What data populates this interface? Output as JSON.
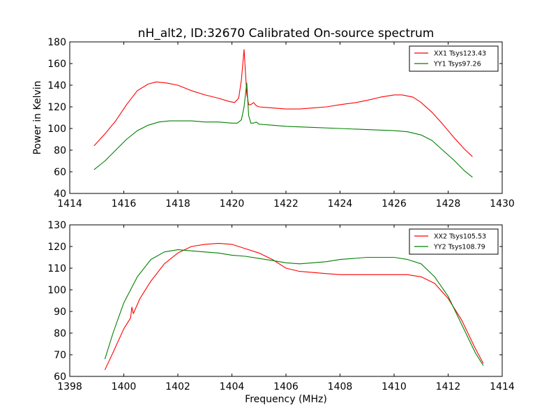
{
  "chart_data": [
    {
      "type": "line",
      "title": "nH_alt2, ID:32670 Calibrated On-source spectrum",
      "xlabel": "",
      "ylabel": "Power in Kelvin",
      "xlim": [
        1414,
        1430
      ],
      "ylim": [
        40,
        180
      ],
      "xticks": [
        1414,
        1416,
        1418,
        1420,
        1422,
        1424,
        1426,
        1428,
        1430
      ],
      "yticks": [
        40,
        60,
        80,
        100,
        120,
        140,
        160,
        180
      ],
      "legend": "top-right",
      "grid": false,
      "series": [
        {
          "name": "XX1 Tsys123.43",
          "color": "#ff0000",
          "x": [
            1414.9,
            1415.3,
            1415.7,
            1416.1,
            1416.5,
            1416.9,
            1417.2,
            1417.6,
            1418.0,
            1418.5,
            1419.0,
            1419.5,
            1419.9,
            1420.1,
            1420.25,
            1420.35,
            1420.45,
            1420.55,
            1420.62,
            1420.7,
            1420.8,
            1420.9,
            1421.0,
            1421.5,
            1422.0,
            1422.5,
            1423.0,
            1423.5,
            1424.0,
            1424.3,
            1424.6,
            1425.0,
            1425.5,
            1426.0,
            1426.3,
            1426.7,
            1427.0,
            1427.4,
            1427.8,
            1428.2,
            1428.6,
            1428.9
          ],
          "y": [
            84,
            95,
            107,
            122,
            135,
            141,
            143,
            142,
            140,
            135,
            131,
            128,
            125,
            124,
            128,
            145,
            173,
            132,
            122,
            122,
            124,
            121,
            120,
            119,
            118,
            118,
            119,
            120,
            122,
            123,
            124,
            126,
            129,
            131,
            131,
            129,
            124,
            115,
            104,
            92,
            81,
            74
          ]
        },
        {
          "name": "YY1 Tsys97.26",
          "color": "#008000",
          "x": [
            1414.9,
            1415.3,
            1415.7,
            1416.1,
            1416.5,
            1416.9,
            1417.3,
            1417.7,
            1418.0,
            1418.5,
            1419.0,
            1419.5,
            1420.0,
            1420.2,
            1420.35,
            1420.45,
            1420.55,
            1420.62,
            1420.7,
            1420.8,
            1420.9,
            1421.0,
            1421.5,
            1422.0,
            1423.0,
            1424.0,
            1425.0,
            1426.0,
            1426.5,
            1427.0,
            1427.4,
            1427.8,
            1428.2,
            1428.6,
            1428.9
          ],
          "y": [
            62,
            70,
            80,
            90,
            98,
            103,
            106,
            107,
            107,
            107,
            106,
            106,
            105,
            105,
            108,
            120,
            142,
            112,
            105,
            105,
            106,
            104,
            103,
            102,
            101,
            100,
            99,
            98,
            97,
            94,
            89,
            80,
            71,
            61,
            55
          ]
        }
      ]
    },
    {
      "type": "line",
      "title": "",
      "xlabel": "Frequency (MHz)",
      "ylabel": "",
      "xlim": [
        1398,
        1414
      ],
      "ylim": [
        60,
        130
      ],
      "xticks": [
        1398,
        1400,
        1402,
        1404,
        1406,
        1408,
        1410,
        1412,
        1414
      ],
      "yticks": [
        60,
        70,
        80,
        90,
        100,
        110,
        120,
        130
      ],
      "legend": "top-right",
      "grid": false,
      "series": [
        {
          "name": "XX2 Tsys105.53",
          "color": "#ff0000",
          "x": [
            1399.3,
            1399.6,
            1400.0,
            1400.25,
            1400.3,
            1400.35,
            1400.6,
            1401.0,
            1401.5,
            1402.0,
            1402.5,
            1403.0,
            1403.5,
            1404.0,
            1404.5,
            1405.0,
            1405.5,
            1406.0,
            1406.5,
            1407.0,
            1407.5,
            1408.0,
            1408.5,
            1409.0,
            1409.5,
            1410.0,
            1410.5,
            1411.0,
            1411.5,
            1412.0,
            1412.5,
            1413.0,
            1413.3
          ],
          "y": [
            63,
            71,
            82,
            87,
            92,
            89,
            96,
            104,
            112,
            117,
            120,
            121,
            121.5,
            121,
            119,
            117,
            114,
            110,
            108.5,
            108,
            107.5,
            107,
            107,
            107,
            107,
            107,
            107,
            106,
            103,
            96,
            86,
            73,
            66
          ]
        },
        {
          "name": "YY2 Tsys108.79",
          "color": "#008000",
          "x": [
            1399.3,
            1399.6,
            1400.0,
            1400.5,
            1401.0,
            1401.5,
            1402.0,
            1402.5,
            1403.0,
            1403.5,
            1404.0,
            1404.5,
            1405.0,
            1405.5,
            1406.0,
            1406.5,
            1407.0,
            1407.5,
            1408.0,
            1408.5,
            1409.0,
            1409.5,
            1410.0,
            1410.5,
            1411.0,
            1411.5,
            1412.0,
            1412.5,
            1413.0,
            1413.3
          ],
          "y": [
            68,
            80,
            94,
            106,
            114,
            117.5,
            118.5,
            118,
            117.5,
            117,
            116,
            115.5,
            114.5,
            113.5,
            112.5,
            112,
            112.5,
            113,
            114,
            114.5,
            115,
            115,
            115,
            114,
            112,
            106,
            97,
            84,
            71,
            65
          ]
        }
      ]
    }
  ]
}
